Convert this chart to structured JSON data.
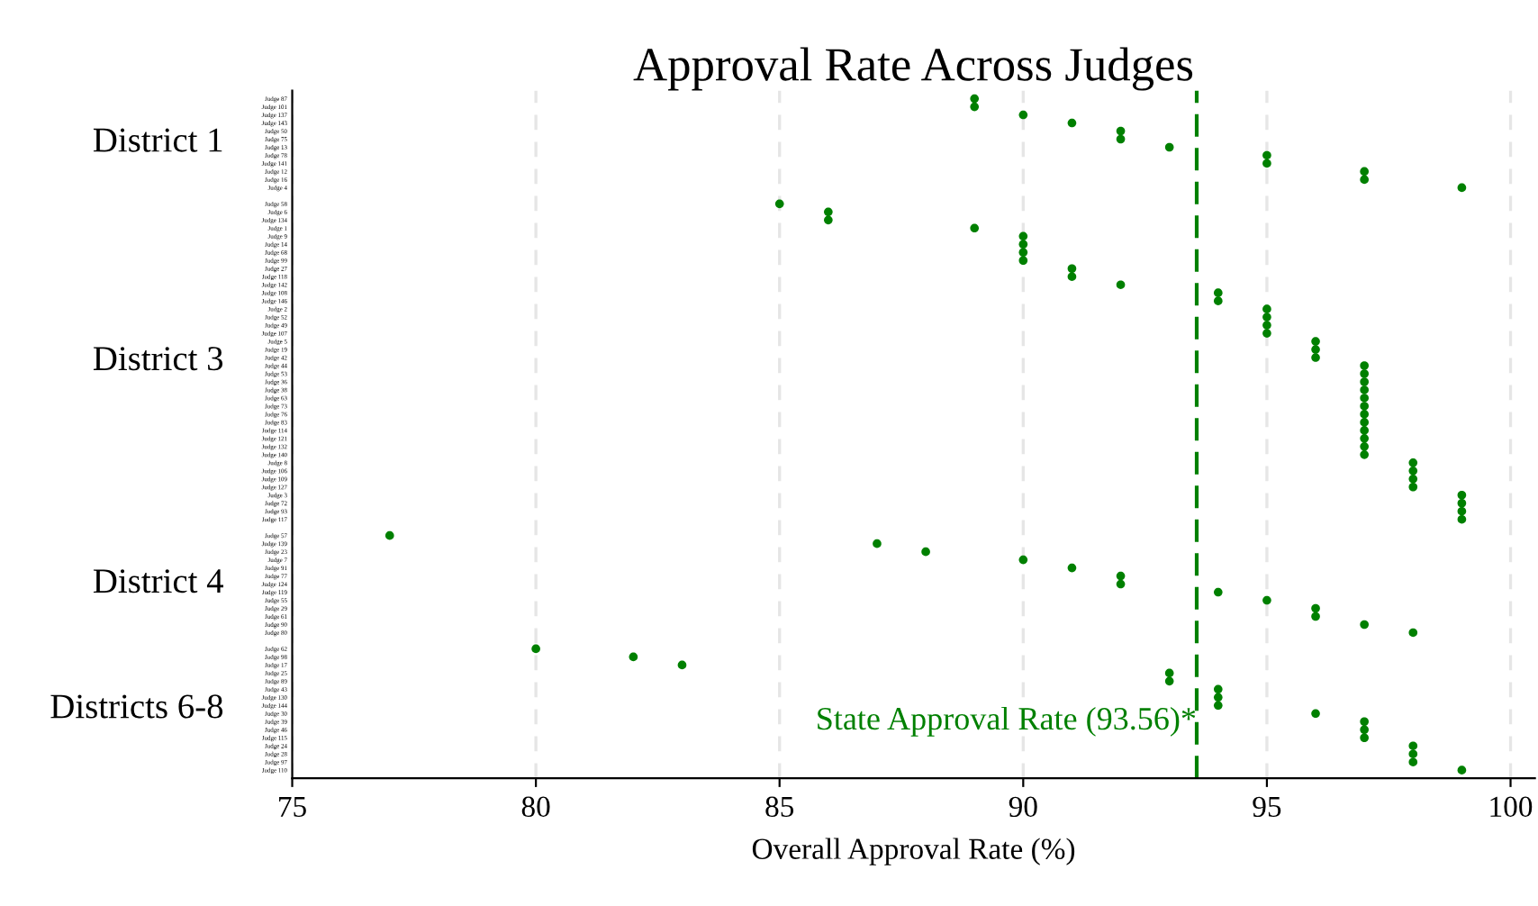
{
  "chart_data": {
    "type": "scatter",
    "orientation": "horizontal",
    "title": "Approval Rate Across Judges",
    "xlabel": "Overall Approval Rate (%)",
    "categories": [
      "Judge 87",
      "Judge 101",
      "Judge 137",
      "Judge 143",
      "Judge 50",
      "Judge 75",
      "Judge 13",
      "Judge 78",
      "Judge 141",
      "Judge 12",
      "Judge 16",
      "Judge 4",
      "Judge 58",
      "Judge 6",
      "Judge 134",
      "Judge 1",
      "Judge 9",
      "Judge 14",
      "Judge 68",
      "Judge 99",
      "Judge 27",
      "Judge 118",
      "Judge 142",
      "Judge 108",
      "Judge 146",
      "Judge 2",
      "Judge 52",
      "Judge 49",
      "Judge 107",
      "Judge 5",
      "Judge 19",
      "Judge 42",
      "Judge 44",
      "Judge 53",
      "Judge 36",
      "Judge 38",
      "Judge 63",
      "Judge 73",
      "Judge 76",
      "Judge 83",
      "Judge 114",
      "Judge 121",
      "Judge 132",
      "Judge 140",
      "Judge 8",
      "Judge 106",
      "Judge 109",
      "Judge 127",
      "Judge 3",
      "Judge 72",
      "Judge 93",
      "Judge 117",
      "Judge 57",
      "Judge 139",
      "Judge 23",
      "Judge 7",
      "Judge 91",
      "Judge 77",
      "Judge 124",
      "Judge 119",
      "Judge 55",
      "Judge 29",
      "Judge 61",
      "Judge 90",
      "Judge 80",
      "Judge 62",
      "Judge 98",
      "Judge 17",
      "Judge 25",
      "Judge 89",
      "Judge 43",
      "Judge 130",
      "Judge 144",
      "Judge 30",
      "Judge 39",
      "Judge 46",
      "Judge 115",
      "Judge 24",
      "Judge 28",
      "Judge 97",
      "Judge 110"
    ],
    "series": [
      {
        "color": "#008000",
        "values": [
          89,
          89,
          90,
          91,
          92,
          92,
          93,
          95,
          95,
          97,
          97,
          99,
          null,
          null,
          null,
          null,
          null,
          null,
          null,
          null,
          null,
          null,
          null,
          null,
          null,
          null,
          null,
          null,
          null,
          null,
          null,
          null,
          null,
          null,
          null,
          null,
          null,
          null,
          null,
          null,
          null,
          null,
          null,
          null,
          null,
          null,
          null,
          null,
          null,
          null,
          null,
          null,
          null,
          null,
          null,
          null,
          null,
          null,
          null,
          null,
          null,
          null,
          null,
          null,
          null,
          null,
          null,
          null,
          null,
          null,
          null,
          null,
          null,
          null,
          null,
          null,
          null,
          null,
          null,
          null,
          null
        ]
      },
      {
        "color": "#008000",
        "values": [
          null,
          null,
          null,
          null,
          null,
          null,
          null,
          null,
          null,
          null,
          null,
          null,
          85,
          86,
          86,
          89,
          90,
          90,
          90,
          90,
          91,
          91,
          92,
          94,
          94,
          95,
          95,
          95,
          95,
          96,
          96,
          96,
          97,
          97,
          97,
          97,
          97,
          97,
          97,
          97,
          97,
          97,
          97,
          97,
          98,
          98,
          98,
          98,
          99,
          99,
          99,
          99,
          null,
          null,
          null,
          null,
          null,
          null,
          null,
          null,
          null,
          null,
          null,
          null,
          null,
          null,
          null,
          null,
          null,
          null,
          null,
          null,
          null,
          null,
          null,
          null,
          null,
          null,
          null,
          null,
          null
        ]
      },
      {
        "color": "#008000",
        "values": [
          null,
          null,
          null,
          null,
          null,
          null,
          null,
          null,
          null,
          null,
          null,
          null,
          null,
          null,
          null,
          null,
          null,
          null,
          null,
          null,
          null,
          null,
          null,
          null,
          null,
          null,
          null,
          null,
          null,
          null,
          null,
          null,
          null,
          null,
          null,
          null,
          null,
          null,
          null,
          null,
          null,
          null,
          null,
          null,
          null,
          null,
          null,
          null,
          null,
          null,
          null,
          null,
          77,
          87,
          88,
          90,
          91,
          92,
          92,
          94,
          95,
          96,
          96,
          97,
          98,
          null,
          null,
          null,
          null,
          null,
          null,
          null,
          null,
          null,
          null,
          null,
          null,
          null,
          null,
          null,
          null
        ]
      },
      {
        "color": "#008000",
        "values": [
          null,
          null,
          null,
          null,
          null,
          null,
          null,
          null,
          null,
          null,
          null,
          null,
          null,
          null,
          null,
          null,
          null,
          null,
          null,
          null,
          null,
          null,
          null,
          null,
          null,
          null,
          null,
          null,
          null,
          null,
          null,
          null,
          null,
          null,
          null,
          null,
          null,
          null,
          null,
          null,
          null,
          null,
          null,
          null,
          null,
          null,
          null,
          null,
          null,
          null,
          null,
          null,
          null,
          null,
          null,
          null,
          null,
          null,
          null,
          null,
          null,
          null,
          null,
          null,
          null,
          80,
          82,
          83,
          93,
          93,
          94,
          94,
          94,
          96,
          97,
          97,
          97,
          98,
          98,
          98,
          99
        ]
      }
    ],
    "xlim": [
      75,
      100.5
    ],
    "xticks": [
      75,
      80,
      85,
      90,
      95,
      100
    ],
    "grid": "x",
    "marker": "circle",
    "annotations": [
      "District 1",
      "District 3",
      "District 4",
      "Districts 6-8"
    ],
    "ref_lines": [
      {
        "axis": "x",
        "value": 93.56,
        "label": "State Approval Rate (93.56)*",
        "color": "#008000",
        "line_style": "dashed"
      }
    ]
  }
}
